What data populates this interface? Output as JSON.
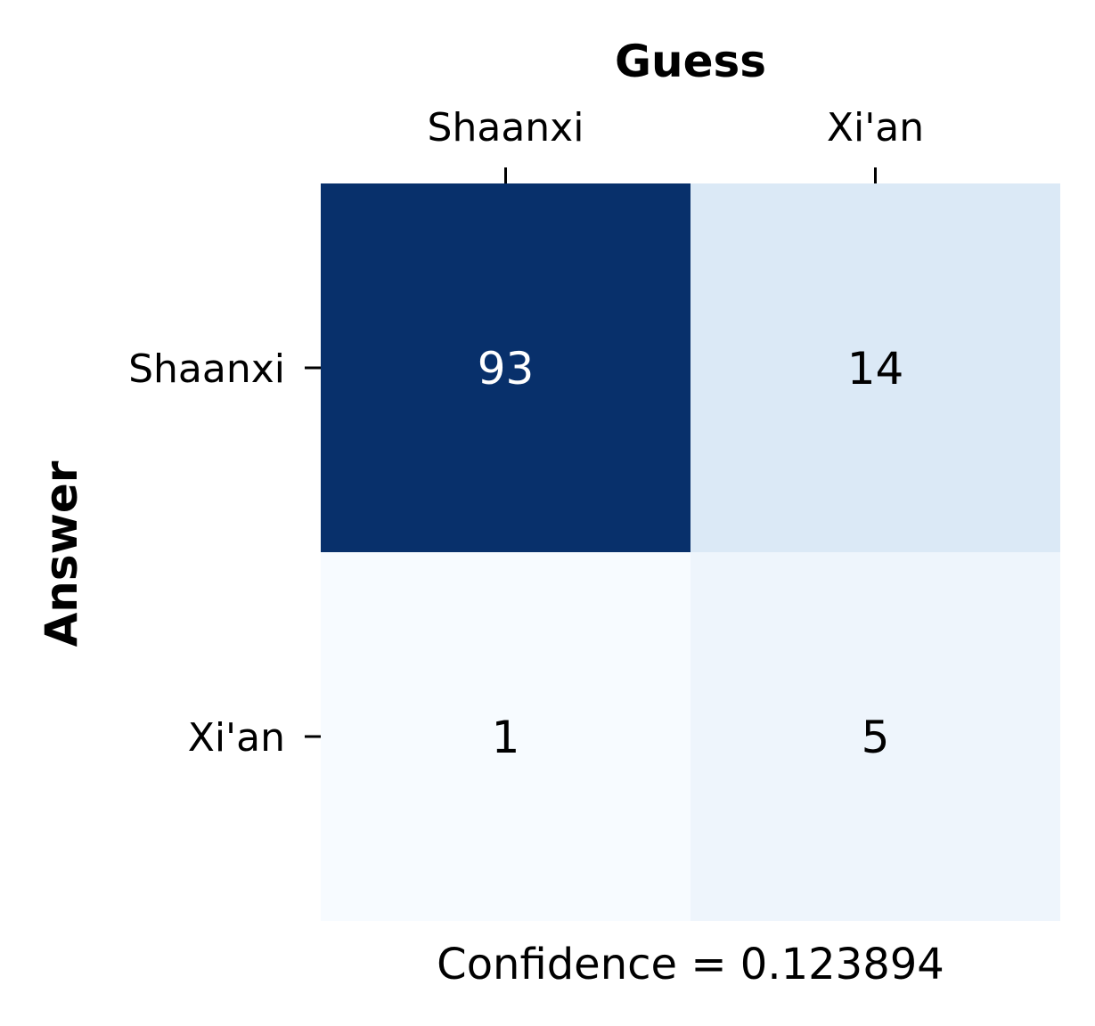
{
  "chart_data": {
    "type": "heatmap",
    "xlabel": "Guess",
    "ylabel": "Answer",
    "x_categories": [
      "Shaanxi",
      "Xi'an"
    ],
    "y_categories": [
      "Shaanxi",
      "Xi'an"
    ],
    "values": [
      [
        93,
        14
      ],
      [
        1,
        5
      ]
    ],
    "colormap": "Blues",
    "colorbar": false,
    "x_ticks_position": "top",
    "caption": "Confidence = 0.123894"
  },
  "colors": {
    "low": "#f7fbff",
    "high": "#08306b",
    "text_dark": "#000000",
    "text_light": "#ffffff"
  }
}
